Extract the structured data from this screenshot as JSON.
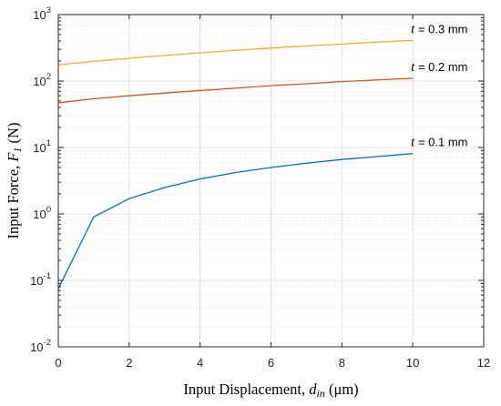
{
  "chart_data": {
    "type": "line",
    "xlabel": {
      "prefix": "Input Displacement, ",
      "symbol": "d",
      "subscript": "in",
      "unit": " (μm)"
    },
    "ylabel": {
      "prefix": "Input Force, ",
      "symbol": "F",
      "subscript": "1",
      "unit": " (N)"
    },
    "xlim": [
      0,
      12
    ],
    "ylim": [
      0.01,
      1000
    ],
    "yscale": "log",
    "grid": true,
    "x_ticks": [
      0,
      2,
      4,
      6,
      8,
      10,
      12
    ],
    "y_ticks": [
      {
        "value": 0.01,
        "base": "10",
        "exp": "-2"
      },
      {
        "value": 0.1,
        "base": "10",
        "exp": "-1"
      },
      {
        "value": 1,
        "base": "10",
        "exp": "0"
      },
      {
        "value": 10,
        "base": "10",
        "exp": "1"
      },
      {
        "value": 100,
        "base": "10",
        "exp": "2"
      },
      {
        "value": 1000,
        "base": "10",
        "exp": "3"
      }
    ],
    "series": [
      {
        "label_symbol": "t",
        "label_text": " = 0.3 mm",
        "color": "#EDB120",
        "x": [
          0,
          1,
          2,
          3,
          4,
          5,
          6,
          7,
          8,
          9,
          10
        ],
        "y": [
          175,
          198,
          220,
          243,
          266,
          290,
          313,
          337,
          360,
          385,
          410
        ]
      },
      {
        "label_symbol": "t",
        "label_text": " = 0.2 mm",
        "color": "#D95319",
        "x": [
          0,
          1,
          2,
          3,
          4,
          5,
          6,
          7,
          8,
          9,
          10
        ],
        "y": [
          47,
          54,
          60,
          66,
          72,
          78,
          85,
          91,
          98,
          104,
          110
        ]
      },
      {
        "label_symbol": "t",
        "label_text": " = 0.1 mm",
        "color": "#0072BD",
        "x": [
          0,
          1,
          2,
          3,
          4,
          5,
          6,
          7,
          8,
          9,
          10
        ],
        "y": [
          0.075,
          0.9,
          1.7,
          2.5,
          3.35,
          4.2,
          5.0,
          5.8,
          6.6,
          7.3,
          8.1
        ]
      }
    ]
  }
}
